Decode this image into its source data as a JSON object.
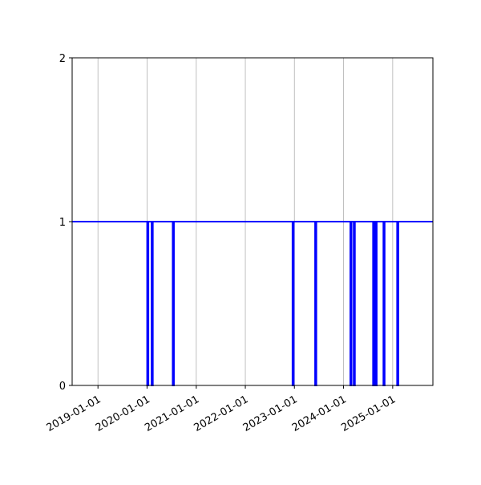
{
  "chart_data": {
    "type": "line",
    "step": "post",
    "xlim": [
      "2018-06-23",
      "2025-10-27"
    ],
    "ylim": [
      0,
      2
    ],
    "x_ticks": [
      "2019-01-01",
      "2020-01-01",
      "2021-01-01",
      "2022-01-01",
      "2023-01-01",
      "2024-01-01",
      "2025-01-01"
    ],
    "y_ticks": [
      "0",
      "1",
      "2"
    ],
    "grid": "x-only",
    "color": "#0000ff",
    "baseline_value": 1,
    "drops_to_zero": [
      {
        "start": "2020-01-02",
        "end": "2020-01-07"
      },
      {
        "start": "2020-02-04",
        "end": "2020-02-06"
      },
      {
        "start": "2020-07-10",
        "end": "2020-07-12"
      },
      {
        "start": "2022-12-18",
        "end": "2022-12-20"
      },
      {
        "start": "2023-06-04",
        "end": "2023-06-06"
      },
      {
        "start": "2024-02-21",
        "end": "2024-02-25"
      },
      {
        "start": "2024-03-17",
        "end": "2024-03-19"
      },
      {
        "start": "2024-08-08",
        "end": "2024-08-12"
      },
      {
        "start": "2024-08-26",
        "end": "2024-08-30"
      },
      {
        "start": "2024-10-24",
        "end": "2024-10-30"
      },
      {
        "start": "2025-02-03",
        "end": "2025-02-06"
      }
    ]
  }
}
